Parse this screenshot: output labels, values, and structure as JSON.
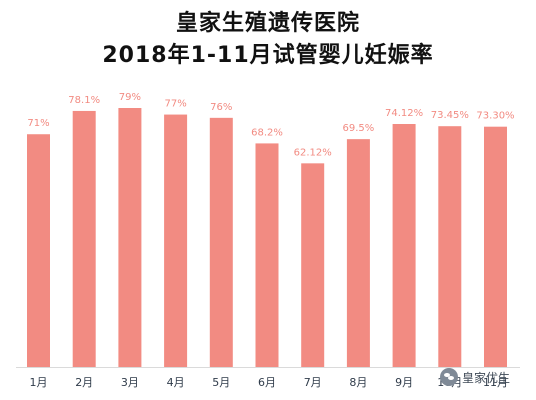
{
  "page": {
    "title_line1": "皇家生殖遗传医院",
    "title_line2": "2018年1-11月试管婴儿妊娠率",
    "watermark": "皇家优生"
  },
  "colors": {
    "bar": "#F28B82",
    "label": "#F28B82",
    "axis_text": "#2F3B4A",
    "baseline": "#DADADA",
    "watermark_icon": "#7F8A97"
  },
  "chart_data": {
    "type": "bar",
    "categories": [
      "1月",
      "2月",
      "3月",
      "4月",
      "5月",
      "6月",
      "7月",
      "8月",
      "9月",
      "10月",
      "11月"
    ],
    "values": [
      71,
      78.1,
      79,
      77,
      76,
      68.2,
      62.12,
      69.5,
      74.12,
      73.45,
      73.3
    ],
    "value_labels": [
      "71%",
      "78.1%",
      "79%",
      "77%",
      "76%",
      "68.2%",
      "62.12%",
      "69.5%",
      "74.12%",
      "73.45%",
      "73.30%"
    ],
    "ylim": [
      0,
      79
    ],
    "grid": false,
    "xlabel": "",
    "ylabel": ""
  }
}
